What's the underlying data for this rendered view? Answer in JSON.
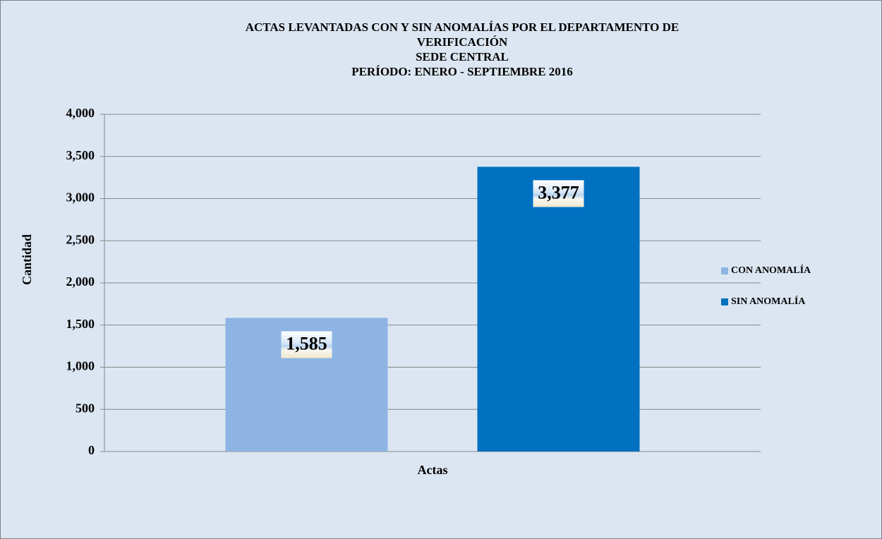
{
  "chart_data": {
    "type": "bar",
    "title": [
      "ACTAS LEVANTADAS  CON Y SIN ANOMALÍAS POR EL DEPARTAMENTO  DE",
      "VERIFICACIÓN",
      "SEDE CENTRAL",
      "PERÍODO: ENERO - SEPTIEMBRE 2016"
    ],
    "ylabel": "Cantidad",
    "categories": [
      "Actas"
    ],
    "series": [
      {
        "name": "CON ANOMALÍA",
        "color": "#8eb4e3",
        "values": [
          1585
        ],
        "value_labels": [
          "1,585"
        ]
      },
      {
        "name": "SIN ANOMALÍA",
        "color": "#0070c0",
        "values": [
          3377
        ],
        "value_labels": [
          "3,377"
        ]
      }
    ],
    "ylim": [
      0,
      4000
    ],
    "yticks": [
      0,
      500,
      {
        "value": 1000,
        "label": "1,000"
      },
      {
        "value": 1500,
        "label": "1,500"
      },
      {
        "value": 2000,
        "label": "2,000"
      },
      {
        "value": 2500,
        "label": "2,500"
      },
      {
        "value": 3000,
        "label": "3,000"
      },
      {
        "value": 3500,
        "label": "3,500"
      },
      {
        "value": 4000,
        "label": "4,000"
      }
    ],
    "grid": true,
    "legend": "right"
  }
}
